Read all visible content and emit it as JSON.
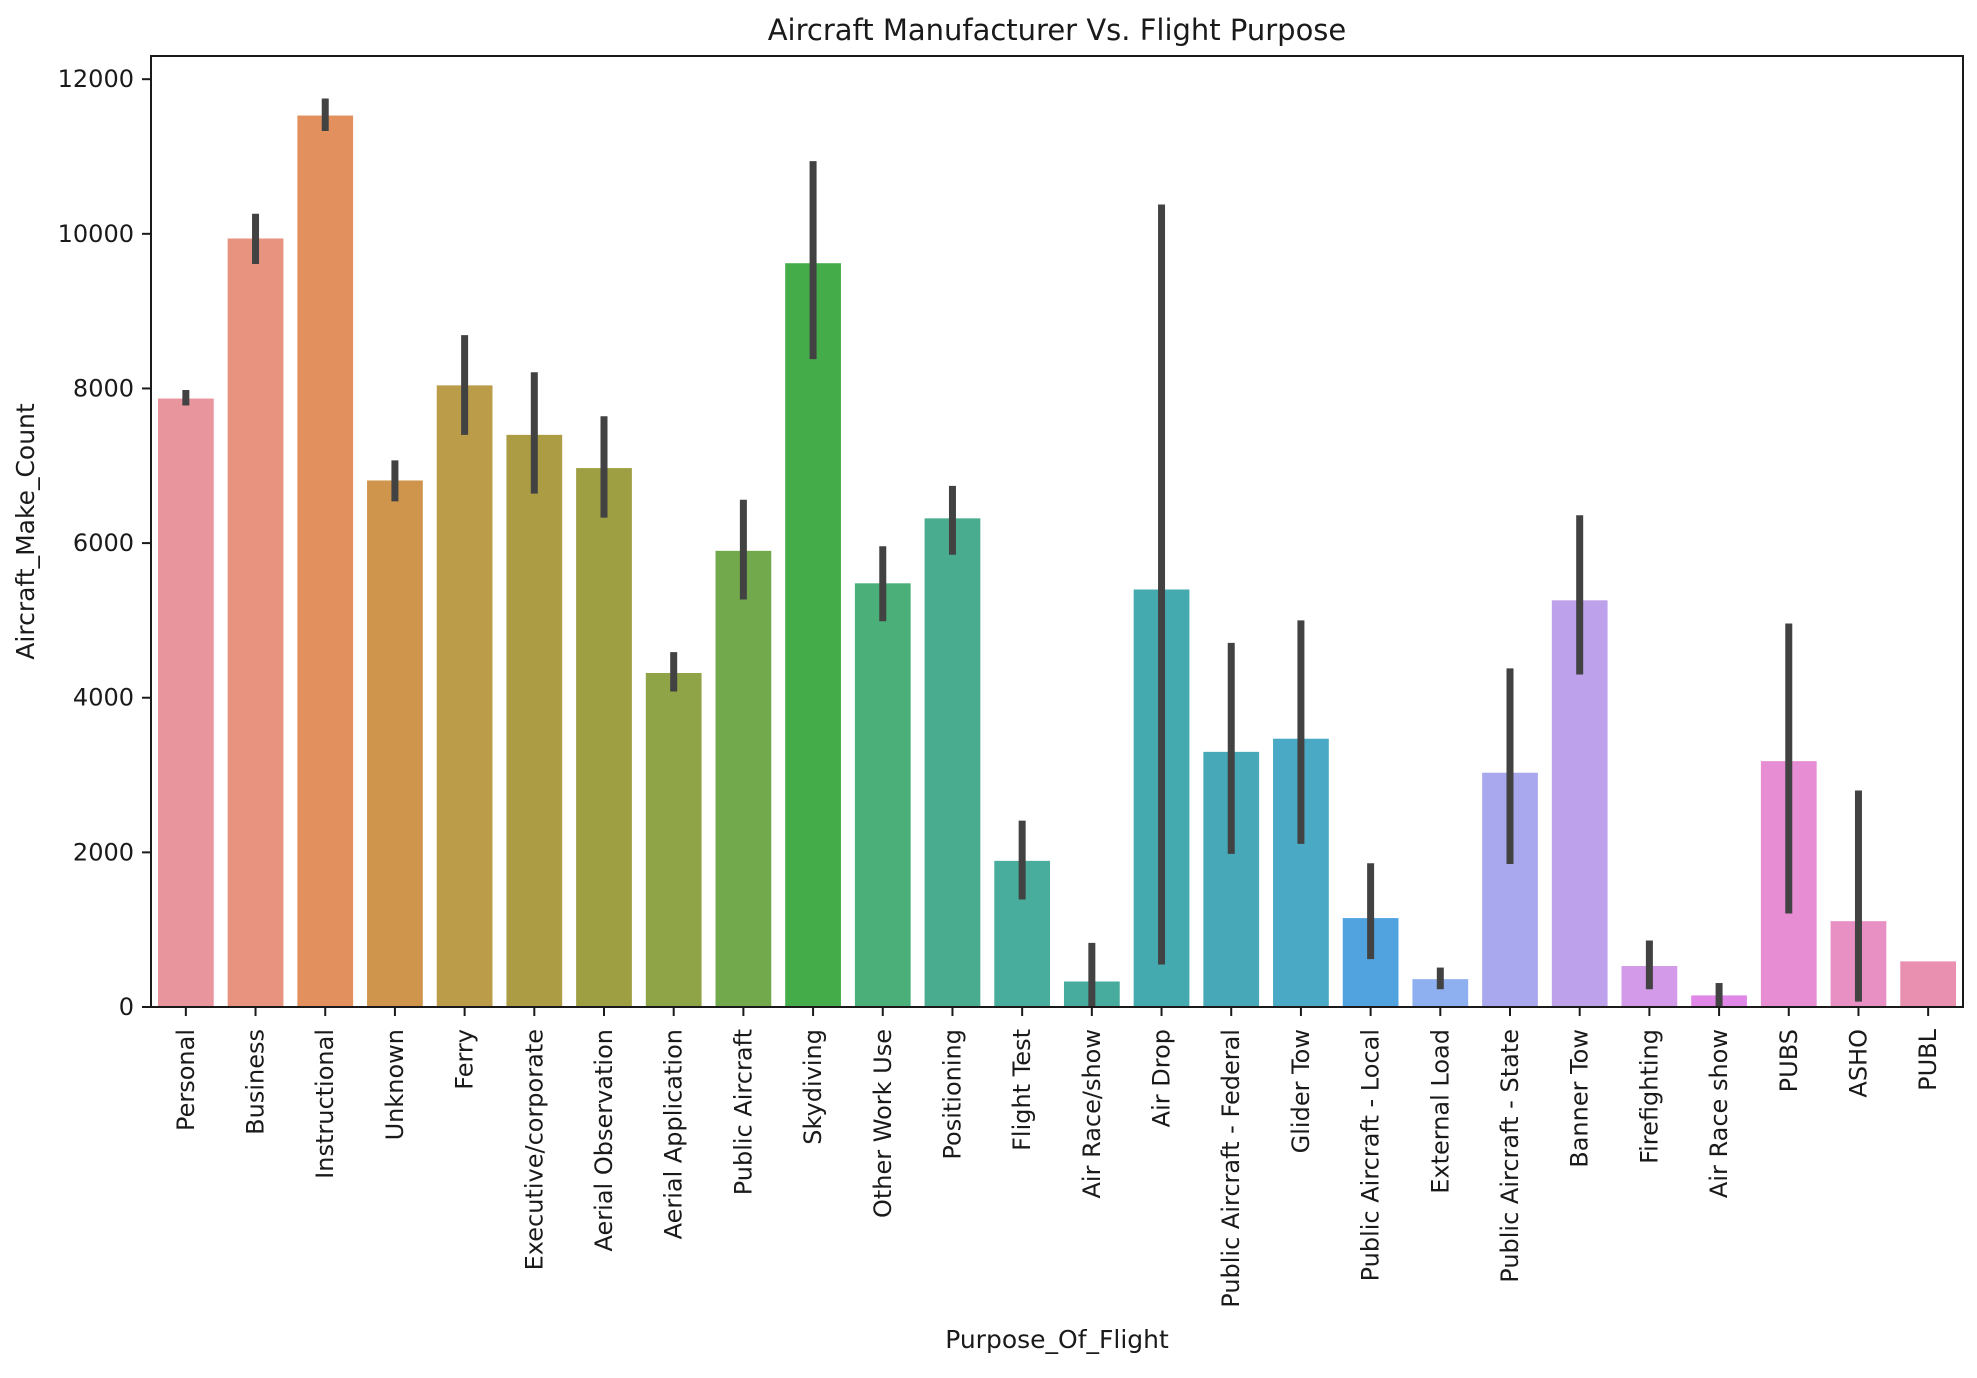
{
  "chart_data": {
    "type": "bar",
    "title": "Aircraft Manufacturer Vs. Flight Purpose",
    "xlabel": "Purpose_Of_Flight",
    "ylabel": "Aircraft_Make_Count",
    "ylim": [
      0,
      12300
    ],
    "yticks": [
      0,
      2000,
      4000,
      6000,
      8000,
      10000,
      12000
    ],
    "ytick_labels": [
      "0",
      "2000",
      "4000",
      "6000",
      "8000",
      "10000",
      "12000"
    ],
    "grid": false,
    "legend": "none",
    "error_bars": true,
    "categories": [
      "Personal",
      "Business",
      "Instructional",
      "Unknown",
      "Ferry",
      "Executive/corporate",
      "Aerial Observation",
      "Aerial Application",
      "Public Aircraft",
      "Skydiving",
      "Other Work Use",
      "Positioning",
      "Flight Test",
      "Air Race/show",
      "Air Drop",
      "Public Aircraft - Federal",
      "Glider Tow",
      "Public Aircraft - Local",
      "External Load",
      "Public Aircraft - State",
      "Banner Tow",
      "Firefighting",
      "Air Race show",
      "PUBS",
      "ASHO",
      "PUBL"
    ],
    "values": [
      7870,
      9940,
      11530,
      6810,
      8040,
      7400,
      6970,
      4320,
      5900,
      9620,
      5480,
      6320,
      1890,
      330,
      5400,
      3300,
      3470,
      1150,
      360,
      3030,
      5260,
      530,
      150,
      3180,
      1110,
      590
    ],
    "error_low": [
      7780,
      9610,
      11330,
      6540,
      7400,
      6640,
      6330,
      4080,
      5270,
      8380,
      4990,
      5850,
      1390,
      0,
      550,
      1980,
      2110,
      620,
      230,
      1850,
      4300,
      230,
      0,
      1210,
      70,
      590
    ],
    "error_high": [
      7980,
      10260,
      11750,
      7070,
      8690,
      8210,
      7640,
      4590,
      6560,
      10940,
      5960,
      6740,
      2410,
      830,
      10380,
      4710,
      5000,
      1860,
      510,
      4380,
      6360,
      860,
      310,
      4960,
      2800,
      590
    ],
    "colors": [
      "#e8959d",
      "#e8937f",
      "#e2915e",
      "#cf954c",
      "#ba9c49",
      "#ac9d45",
      "#9e9e43",
      "#8fa446",
      "#72a94c",
      "#44ad4a",
      "#4aaf79",
      "#4aac8f",
      "#48ad9d",
      "#47ab9e",
      "#45aab0",
      "#47a9b8",
      "#4aa9c4",
      "#51a3e0",
      "#8eaff0",
      "#a9a8ee",
      "#bea1eb",
      "#d29ae9",
      "#e088e8",
      "#e68dd3",
      "#e88fc4",
      "#e98fb0"
    ]
  }
}
